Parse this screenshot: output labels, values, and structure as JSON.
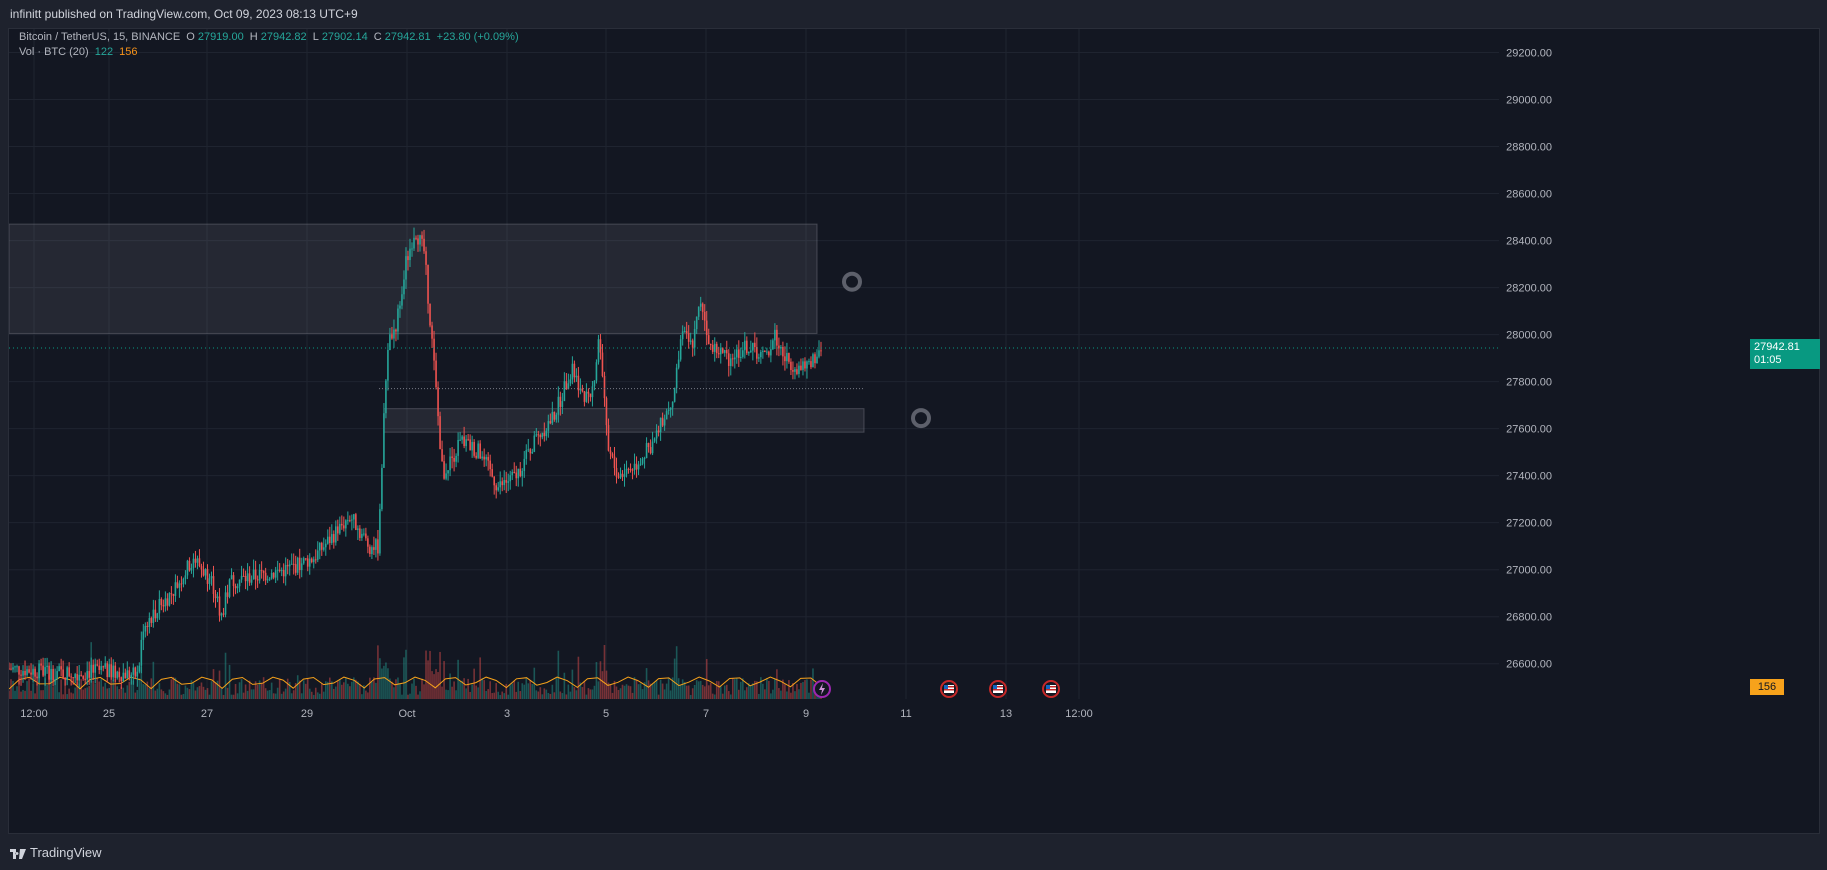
{
  "header": {
    "publisher_line": "infinitt published on TradingView.com, Oct 09, 2023 08:13 UTC+9"
  },
  "legend": {
    "symbol": "Bitcoin / TetherUS, 15, BINANCE",
    "o_label": "O",
    "o_value": "27919.00",
    "h_label": "H",
    "h_value": "27942.82",
    "l_label": "L",
    "l_value": "27902.14",
    "c_label": "C",
    "c_value": "27942.81",
    "change": "+23.80 (+0.09%)",
    "vol_label": "Vol · BTC (20)",
    "vol_value": "122",
    "vol_ma_value": "156"
  },
  "badges": {
    "last_price": "27942.81",
    "countdown": "01:05",
    "volume_ma": "156"
  },
  "footer": {
    "brand": "TradingView"
  },
  "colors": {
    "background": "#131722",
    "up": "#26a69a",
    "down": "#ef5350",
    "grid": "#1f2430",
    "accent": "#089981",
    "volume_ma": "#f7a21b"
  },
  "icons": {
    "events": [
      "flash-event-icon",
      "us-flag-icon",
      "us-flag-icon",
      "us-flag-icon"
    ]
  },
  "chart_data": {
    "type": "candlestick",
    "symbol": "BTCUSDT",
    "interval": "15",
    "exchange": "BINANCE",
    "y_ticks": [
      "29200.00",
      "29000.00",
      "28800.00",
      "28600.00",
      "28400.00",
      "28200.00",
      "28000.00",
      "27800.00",
      "27600.00",
      "27400.00",
      "27200.00",
      "27000.00",
      "26800.00",
      "26600.00"
    ],
    "x_ticks": [
      "12:00",
      "25",
      "27",
      "29",
      "Oct",
      "3",
      "5",
      "7",
      "9",
      "11",
      "13",
      "12:00"
    ],
    "ylim": [
      26450,
      29300
    ],
    "price_path": [
      {
        "x": 0,
        "y": 26580
      },
      {
        "x": 6,
        "y": 26560
      },
      {
        "x": 10,
        "y": 26570
      },
      {
        "x": 14,
        "y": 26550
      },
      {
        "x": 14.5,
        "y": 26760
      },
      {
        "x": 18,
        "y": 26920
      },
      {
        "x": 20,
        "y": 27050
      },
      {
        "x": 22,
        "y": 26950
      },
      {
        "x": 23,
        "y": 26800
      },
      {
        "x": 24,
        "y": 26950
      },
      {
        "x": 30,
        "y": 27000
      },
      {
        "x": 33,
        "y": 27050
      },
      {
        "x": 37,
        "y": 27230
      },
      {
        "x": 39,
        "y": 27100
      },
      {
        "x": 40,
        "y": 27100
      },
      {
        "x": 41,
        "y": 27950
      },
      {
        "x": 42,
        "y": 28050
      },
      {
        "x": 43,
        "y": 28300
      },
      {
        "x": 44,
        "y": 28450
      },
      {
        "x": 45,
        "y": 28350
      },
      {
        "x": 46,
        "y": 27900
      },
      {
        "x": 47,
        "y": 27400
      },
      {
        "x": 49,
        "y": 27550
      },
      {
        "x": 51,
        "y": 27500
      },
      {
        "x": 53,
        "y": 27350
      },
      {
        "x": 55,
        "y": 27400
      },
      {
        "x": 57,
        "y": 27550
      },
      {
        "x": 59,
        "y": 27650
      },
      {
        "x": 61,
        "y": 27850
      },
      {
        "x": 63,
        "y": 27700
      },
      {
        "x": 64,
        "y": 28000
      },
      {
        "x": 65,
        "y": 27500
      },
      {
        "x": 66,
        "y": 27400
      },
      {
        "x": 68,
        "y": 27450
      },
      {
        "x": 70,
        "y": 27550
      },
      {
        "x": 72,
        "y": 27750
      },
      {
        "x": 73,
        "y": 28000
      },
      {
        "x": 74,
        "y": 27950
      },
      {
        "x": 75,
        "y": 28150
      },
      {
        "x": 76,
        "y": 27950
      },
      {
        "x": 78,
        "y": 27900
      },
      {
        "x": 80,
        "y": 27950
      },
      {
        "x": 82,
        "y": 27900
      },
      {
        "x": 83,
        "y": 28000
      },
      {
        "x": 84,
        "y": 27900
      },
      {
        "x": 86,
        "y": 27850
      },
      {
        "x": 88,
        "y": 27942.81
      }
    ],
    "path_x_range": [
      0,
      88
    ],
    "zones": [
      {
        "name": "resistance-zone",
        "y1": 28005,
        "y2": 28470
      },
      {
        "name": "support-zone",
        "y1": 27585,
        "y2": 27685
      }
    ],
    "last_price": 27942.81,
    "volume": {
      "last": 122,
      "ma20": 156
    }
  }
}
